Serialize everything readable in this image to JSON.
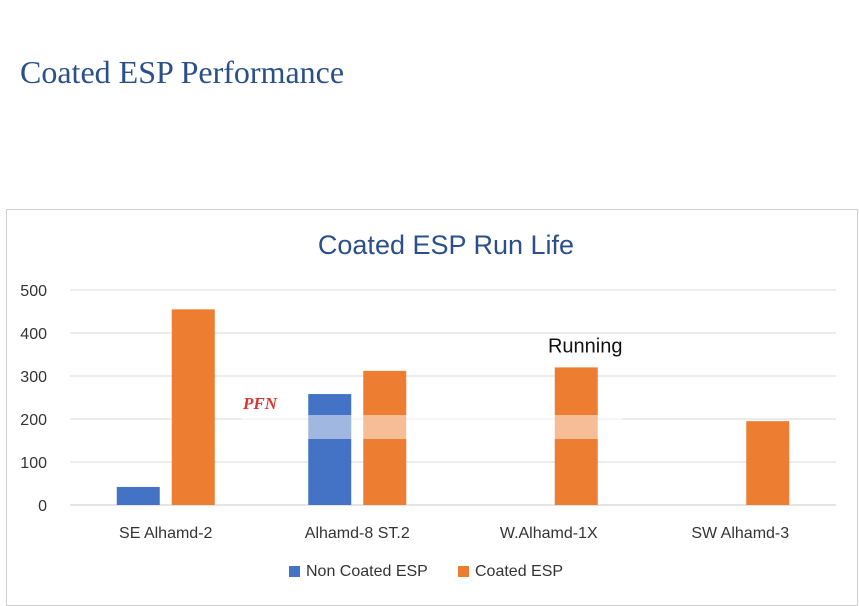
{
  "slide": {
    "title": "Coated ESP Performance"
  },
  "watermark": {
    "text": "PFN"
  },
  "chart_data": {
    "type": "bar",
    "title": "Coated ESP Run Life",
    "categories": [
      "SE Alhamd-2",
      "Alhamd-8 ST.2",
      "W.Alhamd-1X",
      "SW Alhamd-3"
    ],
    "series": [
      {
        "name": "Non Coated ESP",
        "color": "#4472c4",
        "values": [
          42,
          258,
          null,
          null
        ]
      },
      {
        "name": "Coated ESP",
        "color": "#ed7d31",
        "values": [
          455,
          312,
          320,
          195
        ]
      }
    ],
    "ylim": [
      0,
      500
    ],
    "yticks": [
      0,
      100,
      200,
      300,
      400,
      500
    ],
    "grid": true,
    "legend": "bottom",
    "annotations": [
      {
        "text": "Running",
        "category": "W.Alhamd-1X",
        "series": "Coated ESP"
      }
    ]
  }
}
